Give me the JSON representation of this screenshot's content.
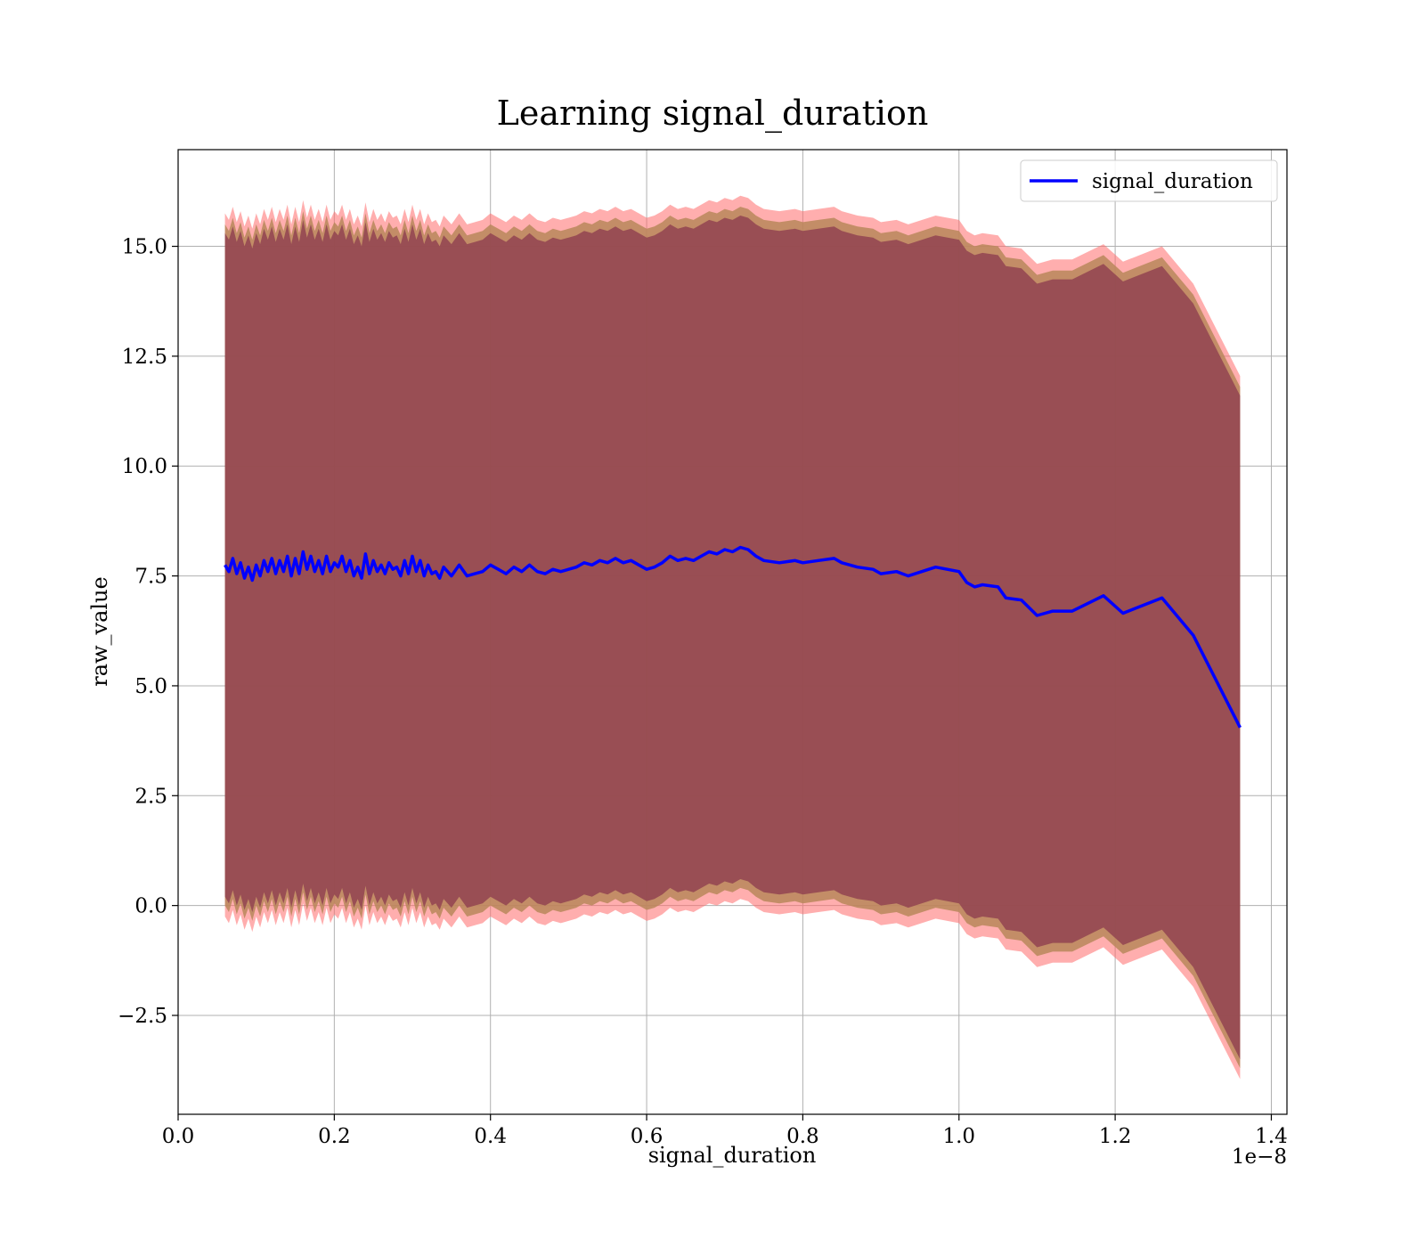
{
  "chart_data": {
    "type": "line",
    "title": "Learning signal_duration",
    "xlabel": "signal_duration",
    "ylabel": "raw_value",
    "x_offset_label": "1e−8",
    "xlim": [
      0.0,
      1.42
    ],
    "ylim": [
      -4.75,
      17.2
    ],
    "x_ticks": [
      0.0,
      0.2,
      0.4,
      0.6,
      0.8,
      1.0,
      1.2,
      1.4
    ],
    "x_tick_labels": [
      "0.0",
      "0.2",
      "0.4",
      "0.6",
      "0.8",
      "1.0",
      "1.2",
      "1.4"
    ],
    "y_ticks": [
      -2.5,
      0.0,
      2.5,
      5.0,
      7.5,
      10.0,
      12.5,
      15.0
    ],
    "y_tick_labels": [
      "−2.5",
      "0.0",
      "2.5",
      "5.0",
      "7.5",
      "10.0",
      "12.5",
      "15.0"
    ],
    "grid": true,
    "legend_position": "top-right",
    "colors": {
      "line": "#0000ff",
      "band_outer": "#ff6b6b",
      "band_middle": "#b8875a",
      "band_inner": "#8b3a4e",
      "grid": "#b0b0b0"
    },
    "series": [
      {
        "name": "signal_duration",
        "x": [
          0.06,
          0.065,
          0.07,
          0.075,
          0.08,
          0.085,
          0.09,
          0.095,
          0.1,
          0.105,
          0.11,
          0.115,
          0.12,
          0.125,
          0.13,
          0.135,
          0.14,
          0.145,
          0.15,
          0.155,
          0.16,
          0.165,
          0.17,
          0.175,
          0.18,
          0.185,
          0.19,
          0.195,
          0.2,
          0.205,
          0.21,
          0.215,
          0.22,
          0.225,
          0.23,
          0.235,
          0.24,
          0.245,
          0.25,
          0.255,
          0.26,
          0.265,
          0.27,
          0.275,
          0.28,
          0.285,
          0.29,
          0.295,
          0.3,
          0.305,
          0.31,
          0.315,
          0.32,
          0.325,
          0.33,
          0.335,
          0.34,
          0.35,
          0.36,
          0.37,
          0.38,
          0.39,
          0.4,
          0.41,
          0.42,
          0.43,
          0.44,
          0.45,
          0.46,
          0.47,
          0.48,
          0.49,
          0.5,
          0.51,
          0.52,
          0.53,
          0.54,
          0.55,
          0.56,
          0.57,
          0.58,
          0.59,
          0.6,
          0.61,
          0.62,
          0.63,
          0.64,
          0.65,
          0.66,
          0.67,
          0.68,
          0.69,
          0.7,
          0.71,
          0.72,
          0.73,
          0.74,
          0.75,
          0.77,
          0.79,
          0.8,
          0.82,
          0.84,
          0.85,
          0.87,
          0.89,
          0.9,
          0.92,
          0.935,
          0.97,
          1.0,
          1.01,
          1.02,
          1.03,
          1.05,
          1.06,
          1.08,
          1.1,
          1.12,
          1.145,
          1.185,
          1.21,
          1.26,
          1.3,
          1.36
        ],
        "values": [
          7.75,
          7.6,
          7.9,
          7.55,
          7.8,
          7.45,
          7.7,
          7.4,
          7.75,
          7.5,
          7.85,
          7.6,
          7.9,
          7.55,
          7.85,
          7.6,
          7.95,
          7.5,
          7.9,
          7.55,
          8.05,
          7.65,
          7.95,
          7.6,
          7.85,
          7.55,
          7.95,
          7.6,
          7.8,
          7.7,
          7.95,
          7.6,
          7.85,
          7.5,
          7.7,
          7.45,
          8.0,
          7.55,
          7.85,
          7.6,
          7.75,
          7.55,
          7.8,
          7.65,
          7.7,
          7.5,
          7.85,
          7.55,
          7.95,
          7.6,
          7.85,
          7.5,
          7.75,
          7.55,
          7.6,
          7.45,
          7.7,
          7.5,
          7.75,
          7.5,
          7.55,
          7.6,
          7.75,
          7.65,
          7.55,
          7.7,
          7.6,
          7.75,
          7.6,
          7.55,
          7.65,
          7.6,
          7.65,
          7.7,
          7.8,
          7.75,
          7.85,
          7.8,
          7.9,
          7.8,
          7.85,
          7.75,
          7.65,
          7.7,
          7.8,
          7.95,
          7.85,
          7.9,
          7.85,
          7.95,
          8.05,
          8.0,
          8.1,
          8.05,
          8.15,
          8.1,
          7.95,
          7.85,
          7.8,
          7.85,
          7.8,
          7.85,
          7.9,
          7.8,
          7.7,
          7.65,
          7.55,
          7.6,
          7.5,
          7.7,
          7.6,
          7.35,
          7.25,
          7.3,
          7.25,
          7.0,
          6.95,
          6.6,
          6.7,
          6.7,
          7.05,
          6.65,
          7.0,
          6.15,
          4.05
        ]
      }
    ],
    "bands": [
      {
        "name": "outer",
        "half_width": 8.0
      },
      {
        "name": "middle",
        "half_width": 7.75
      },
      {
        "name": "inner",
        "half_width": 7.55
      }
    ]
  }
}
